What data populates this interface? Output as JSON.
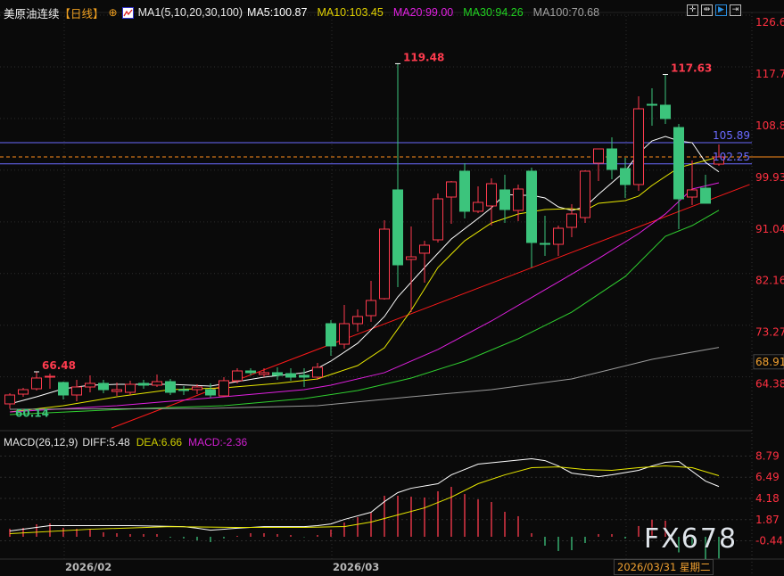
{
  "header": {
    "symbol": "美原油连续",
    "period": "【日线】",
    "ma_set": "MA1(5,10,20,30,100)",
    "ma5": "MA5:100.87",
    "ma10": "MA10:103.45",
    "ma20": "MA20:99.00",
    "ma30": "MA30:94.26",
    "ma100": "MA100:70.68"
  },
  "toolbar": {
    "icons": [
      "crosshair-icon",
      "fit-range-icon",
      "cursor-select-icon",
      "exit-right-icon"
    ],
    "active": "cursor-select-icon"
  },
  "colors": {
    "up": "#ff3b4e",
    "down": "#3cc47c",
    "ma5": "#ffffff",
    "ma10": "#e8e800",
    "ma20": "#e020e0",
    "ma30": "#30d030",
    "ma100": "#9a9a9a",
    "trendline": "#ff1a1a",
    "hline": "#6a6aff",
    "current": "#ff8c1a",
    "axis_text": "#ff3040"
  },
  "macd_header": {
    "name": "MACD(26,12,9)",
    "diff": "DIFF:5.48",
    "dea": "DEA:6.66",
    "macd": "MACD:-2.36"
  },
  "x_axis": {
    "labels": [
      "2026/02",
      "2026/03"
    ],
    "cursor_date": "2026/03/31 星期二"
  },
  "watermark": "FX678",
  "chart_data": [
    {
      "type": "candlestick",
      "title": "美原油连续",
      "y_ticks": [
        "126.60",
        "117.71",
        "108.82",
        "99.93",
        "91.04",
        "82.16",
        "73.27",
        "64.38"
      ],
      "ylim": [
        58.5,
        126.6
      ],
      "grid": true,
      "candles_ohlc_note": "[open, high, low, close]",
      "candles": [
        [
          60.96,
          62.8,
          60.14,
          62.49
        ],
        [
          62.64,
          63.72,
          62.18,
          63.41
        ],
        [
          63.56,
          66.48,
          63.26,
          65.41
        ],
        [
          65.56,
          66.17,
          63.56,
          65.71
        ],
        [
          64.64,
          64.79,
          61.72,
          62.49
        ],
        [
          62.49,
          65.1,
          61.42,
          63.87
        ],
        [
          63.87,
          65.87,
          62.95,
          64.49
        ],
        [
          64.49,
          65.1,
          62.8,
          63.41
        ],
        [
          63.1,
          64.64,
          62.34,
          63.41
        ],
        [
          62.95,
          64.95,
          62.49,
          64.33
        ],
        [
          64.49,
          65.1,
          63.56,
          64.18
        ],
        [
          64.18,
          66.02,
          63.87,
          64.79
        ],
        [
          64.79,
          65.25,
          62.49,
          62.95
        ],
        [
          63.41,
          64.03,
          62.49,
          63.26
        ],
        [
          63.41,
          64.33,
          62.64,
          63.87
        ],
        [
          63.41,
          64.49,
          62.03,
          62.49
        ],
        [
          62.34,
          65.56,
          62.18,
          64.95
        ],
        [
          64.95,
          67.09,
          64.49,
          66.63
        ],
        [
          66.63,
          67.09,
          65.87,
          66.33
        ],
        [
          66.02,
          67.09,
          65.56,
          66.33
        ],
        [
          66.33,
          67.25,
          65.1,
          65.87
        ],
        [
          66.17,
          67.09,
          64.95,
          65.56
        ],
        [
          65.87,
          67.09,
          63.87,
          65.56
        ],
        [
          65.56,
          68.01,
          65.1,
          67.25
        ],
        [
          74.76,
          75.37,
          69.24,
          70.93
        ],
        [
          71.23,
          77.98,
          70.47,
          74.76
        ],
        [
          74.76,
          77.21,
          73.38,
          75.99
        ],
        [
          76.14,
          82.12,
          75.07,
          78.75
        ],
        [
          79.06,
          92.55,
          78.9,
          91.02
        ],
        [
          97.77,
          119.48,
          81.05,
          84.88
        ],
        [
          85.8,
          91.48,
          76.75,
          86.26
        ],
        [
          86.88,
          89.02,
          81.82,
          88.26
        ],
        [
          89.18,
          97.15,
          88.72,
          96.23
        ],
        [
          96.54,
          99.3,
          91.94,
          99.15
        ],
        [
          100.99,
          102.37,
          92.86,
          94.09
        ],
        [
          94.09,
          98.38,
          93.78,
          95.62
        ],
        [
          95.01,
          99.76,
          91.63,
          98.84
        ],
        [
          97.77,
          100.37,
          92.09,
          94.39
        ],
        [
          94.24,
          98.69,
          92.4,
          97.92
        ],
        [
          100.99,
          101.6,
          84.42,
          88.72
        ],
        [
          88.56,
          93.32,
          86.42,
          88.41
        ],
        [
          88.41,
          91.63,
          86.42,
          91.17
        ],
        [
          91.33,
          95.31,
          89.64,
          93.63
        ],
        [
          93.01,
          101.14,
          92.09,
          100.99
        ],
        [
          102.37,
          104.82,
          99.3,
          104.82
        ],
        [
          104.82,
          106.82,
          99.61,
          101.29
        ],
        [
          101.45,
          103.29,
          96.39,
          98.69
        ],
        [
          98.69,
          113.87,
          97.61,
          111.72
        ],
        [
          112.49,
          115.25,
          108.81,
          112.34
        ],
        [
          112.34,
          117.63,
          109.12,
          110.04
        ],
        [
          108.5,
          109.12,
          91.02,
          96.23
        ],
        [
          96.54,
          102.83,
          95.16,
          97.77
        ],
        [
          98.07,
          100.37,
          95.47,
          95.47
        ],
        [
          102.21,
          105.59,
          101.9,
          103.44
        ]
      ],
      "annotations": [
        {
          "text": "119.48",
          "candle": 29,
          "value": 119.48
        },
        {
          "text": "117.63",
          "candle": 49,
          "value": 117.63
        },
        {
          "text": "66.48",
          "candle": 2,
          "value": 66.48
        },
        {
          "text": "60.14",
          "candle": 0,
          "value": 60.14
        }
      ],
      "horizontal_lines": [
        {
          "label": "105.89",
          "value": 105.89
        },
        {
          "label": "102.25",
          "value": 102.25
        }
      ],
      "current_price": 103.44,
      "axis_marker": "68.91",
      "trendline": [
        [
          7.6,
          56.8
        ],
        [
          55.3,
          98.7
        ]
      ],
      "series": [
        {
          "name": "MA5",
          "points": [
            [
              0,
              60.96
            ],
            [
              2,
              62.18
            ],
            [
              4,
              63.56
            ],
            [
              6,
              64.18
            ],
            [
              8,
              64.33
            ],
            [
              12,
              64.33
            ],
            [
              15,
              64.03
            ],
            [
              17,
              64.79
            ],
            [
              19,
              65.56
            ],
            [
              22,
              66.33
            ],
            [
              23,
              67.09
            ],
            [
              24,
              68.32
            ],
            [
              26,
              71.39
            ],
            [
              28,
              75.99
            ],
            [
              29,
              79.36
            ],
            [
              31,
              84.42
            ],
            [
              33,
              89.33
            ],
            [
              35,
              92.86
            ],
            [
              36,
              94.7
            ],
            [
              37,
              97.0
            ],
            [
              38,
              96.85
            ],
            [
              39,
              96.85
            ],
            [
              40,
              96.39
            ],
            [
              41,
              94.85
            ],
            [
              42,
              94.24
            ],
            [
              43,
              94.85
            ],
            [
              44,
              97.0
            ],
            [
              45,
              98.99
            ],
            [
              46,
              100.99
            ],
            [
              47,
              104.05
            ],
            [
              48,
              106.2
            ],
            [
              49,
              106.97
            ],
            [
              50,
              106.2
            ],
            [
              51,
              105.89
            ],
            [
              52,
              102.52
            ],
            [
              53,
              100.87
            ]
          ]
        },
        {
          "name": "MA10",
          "points": [
            [
              0,
              59.58
            ],
            [
              4,
              60.65
            ],
            [
              8,
              62.18
            ],
            [
              12,
              63.41
            ],
            [
              16,
              63.72
            ],
            [
              20,
              64.49
            ],
            [
              23,
              65.25
            ],
            [
              24,
              66.02
            ],
            [
              26,
              67.55
            ],
            [
              28,
              70.62
            ],
            [
              30,
              77.06
            ],
            [
              32,
              84.42
            ],
            [
              34,
              89.02
            ],
            [
              36,
              92.09
            ],
            [
              38,
              93.63
            ],
            [
              40,
              94.39
            ],
            [
              42,
              94.55
            ],
            [
              43,
              94.24
            ],
            [
              44,
              95.47
            ],
            [
              46,
              95.93
            ],
            [
              47,
              96.7
            ],
            [
              48,
              98.53
            ],
            [
              50,
              101.6
            ],
            [
              52,
              102.83
            ],
            [
              53,
              103.45
            ]
          ]
        },
        {
          "name": "MA20",
          "points": [
            [
              0,
              59.58
            ],
            [
              8,
              60.65
            ],
            [
              16,
              62.18
            ],
            [
              22,
              63.41
            ],
            [
              24,
              64.18
            ],
            [
              28,
              66.33
            ],
            [
              32,
              70.32
            ],
            [
              36,
              75.22
            ],
            [
              40,
              80.59
            ],
            [
              44,
              85.96
            ],
            [
              47,
              90.25
            ],
            [
              49,
              93.63
            ],
            [
              51,
              97.92
            ],
            [
              53,
              99.0
            ]
          ]
        },
        {
          "name": "MA30",
          "points": [
            [
              0,
              59.12
            ],
            [
              10,
              60.19
            ],
            [
              16,
              60.65
            ],
            [
              22,
              61.88
            ],
            [
              26,
              63.26
            ],
            [
              30,
              65.41
            ],
            [
              34,
              68.32
            ],
            [
              38,
              72.16
            ],
            [
              42,
              76.75
            ],
            [
              46,
              82.88
            ],
            [
              49,
              89.79
            ],
            [
              51,
              91.63
            ],
            [
              53,
              94.26
            ]
          ]
        },
        {
          "name": "MA100",
          "points": [
            [
              0,
              60.04
            ],
            [
              15,
              60.19
            ],
            [
              23,
              60.65
            ],
            [
              30,
              62.18
            ],
            [
              36,
              63.41
            ],
            [
              42,
              65.25
            ],
            [
              48,
              68.63
            ],
            [
              53,
              70.68
            ]
          ]
        }
      ]
    },
    {
      "type": "macd",
      "title": "MACD(26,12,9)",
      "y_ticks": [
        "8.79",
        "6.49",
        "4.18",
        "1.87",
        "-0.44"
      ],
      "grid": true,
      "histogram": [
        0.87,
        0.97,
        1.36,
        1.46,
        0.97,
        0.87,
        0.78,
        0.49,
        0.39,
        0.29,
        0.29,
        0.29,
        -0.1,
        -0.19,
        -0.39,
        -0.58,
        -0.19,
        0.1,
        0.39,
        0.39,
        0.29,
        0.19,
        -0.05,
        0.19,
        0.78,
        1.55,
        2.14,
        2.62,
        4.47,
        4.47,
        4.37,
        4.28,
        4.96,
        5.44,
        4.66,
        4.08,
        3.79,
        2.72,
        2.24,
        0.39,
        -0.97,
        -1.55,
        -1.46,
        -0.68,
        0.29,
        0.29,
        -0.19,
        1.17,
        1.85,
        1.75,
        -1.7,
        -0.9,
        -2.53,
        -2.36
      ],
      "series": [
        {
          "name": "DIFF",
          "points": [
            [
              0,
              0.63
            ],
            [
              3,
              1.21
            ],
            [
              9,
              1.21
            ],
            [
              13,
              1.11
            ],
            [
              14,
              0.93
            ],
            [
              15,
              0.72
            ],
            [
              17,
              0.93
            ],
            [
              19,
              1.11
            ],
            [
              22,
              1.11
            ],
            [
              23,
              1.21
            ],
            [
              24,
              1.4
            ],
            [
              25,
              1.89
            ],
            [
              27,
              2.67
            ],
            [
              28,
              3.83
            ],
            [
              29,
              4.81
            ],
            [
              30,
              5.29
            ],
            [
              32,
              5.78
            ],
            [
              33,
              6.75
            ],
            [
              35,
              7.92
            ],
            [
              37,
              8.21
            ],
            [
              39,
              8.5
            ],
            [
              40,
              8.3
            ],
            [
              41,
              7.72
            ],
            [
              42,
              6.94
            ],
            [
              44,
              6.55
            ],
            [
              45,
              6.75
            ],
            [
              47,
              7.24
            ],
            [
              48,
              7.72
            ],
            [
              49,
              8.11
            ],
            [
              50,
              8.21
            ],
            [
              52,
              6.07
            ],
            [
              53,
              5.48
            ]
          ]
        },
        {
          "name": "DEA",
          "points": [
            [
              0,
              0.34
            ],
            [
              6,
              0.82
            ],
            [
              12,
              1.11
            ],
            [
              17,
              1.02
            ],
            [
              22,
              1.02
            ],
            [
              25,
              1.11
            ],
            [
              27,
              1.6
            ],
            [
              29,
              2.38
            ],
            [
              31,
              3.15
            ],
            [
              33,
              4.32
            ],
            [
              35,
              5.78
            ],
            [
              37,
              6.75
            ],
            [
              39,
              7.53
            ],
            [
              41,
              7.62
            ],
            [
              43,
              7.33
            ],
            [
              45,
              7.24
            ],
            [
              47,
              7.53
            ],
            [
              49,
              7.72
            ],
            [
              51,
              7.53
            ],
            [
              53,
              6.66
            ]
          ]
        }
      ]
    }
  ]
}
